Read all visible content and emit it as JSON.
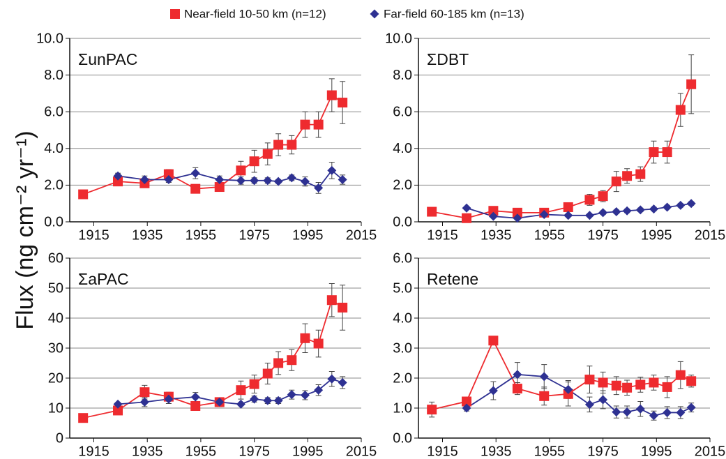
{
  "ylabel": "Flux (ng cm⁻² yr⁻¹)",
  "chart_data": [
    {
      "type": "line",
      "title": "ΣunPAC",
      "xlim": [
        1906,
        2015
      ],
      "xticks": [
        1915,
        1935,
        1955,
        1975,
        1995,
        2015
      ],
      "ylim": [
        0,
        10
      ],
      "yticks": [
        {
          "value": 0,
          "label": "0.0"
        },
        {
          "value": 2,
          "label": "2.0"
        },
        {
          "value": 4,
          "label": "4.0"
        },
        {
          "value": 6,
          "label": "6.0"
        },
        {
          "value": 8,
          "label": "8.0"
        },
        {
          "value": 10,
          "label": "10.0"
        }
      ],
      "grid": true,
      "series": [
        {
          "name": "Near-field 10-50 km (n=12)",
          "color": "#ee2b2f",
          "marker": "square",
          "x": [
            1911,
            1924,
            1934,
            1943,
            1953,
            1962,
            1970,
            1975,
            1980,
            1984,
            1989,
            1994,
            1999,
            2004,
            2008
          ],
          "values": [
            1.5,
            2.2,
            2.1,
            2.6,
            1.8,
            1.9,
            2.8,
            3.3,
            3.7,
            4.2,
            4.2,
            5.3,
            5.3,
            6.9,
            6.5
          ],
          "errors": [
            null,
            0.15,
            0.2,
            0.25,
            0.1,
            0.15,
            0.5,
            0.6,
            0.6,
            0.6,
            0.5,
            0.7,
            0.7,
            0.9,
            1.15
          ]
        },
        {
          "name": "Far-field 60-185 km (n=13)",
          "color": "#2e3192",
          "marker": "diamond",
          "x": [
            1924,
            1934,
            1943,
            1953,
            1962,
            1970,
            1975,
            1980,
            1984,
            1989,
            1994,
            1999,
            2004,
            2008
          ],
          "values": [
            2.5,
            2.3,
            2.3,
            2.65,
            2.3,
            2.25,
            2.25,
            2.25,
            2.2,
            2.4,
            2.2,
            1.85,
            2.8,
            2.3
          ],
          "errors": [
            0.15,
            0.2,
            0.15,
            0.3,
            0.2,
            0.2,
            0.15,
            0.15,
            0.1,
            0.15,
            0.25,
            0.3,
            0.45,
            0.25
          ]
        }
      ]
    },
    {
      "type": "line",
      "title": "ΣDBT",
      "xlim": [
        1906,
        2015
      ],
      "xticks": [
        1915,
        1935,
        1955,
        1975,
        1995,
        2015
      ],
      "ylim": [
        0,
        10
      ],
      "yticks": [
        {
          "value": 0,
          "label": "0.0"
        },
        {
          "value": 2,
          "label": "2.0"
        },
        {
          "value": 4,
          "label": "4.0"
        },
        {
          "value": 6,
          "label": "6.0"
        },
        {
          "value": 8,
          "label": "8.0"
        },
        {
          "value": 10,
          "label": "10.0"
        }
      ],
      "grid": true,
      "series": [
        {
          "color": "#ee2b2f",
          "marker": "square",
          "x": [
            1911,
            1924,
            1934,
            1943,
            1953,
            1962,
            1970,
            1975,
            1980,
            1984,
            1989,
            1994,
            1999,
            2004,
            2008
          ],
          "values": [
            0.55,
            0.2,
            0.6,
            0.5,
            0.5,
            0.8,
            1.2,
            1.4,
            2.2,
            2.5,
            2.6,
            3.8,
            3.8,
            6.1,
            7.5
          ],
          "errors": [
            null,
            0.1,
            0.1,
            0.1,
            0.1,
            0.1,
            0.3,
            0.3,
            0.55,
            0.4,
            0.4,
            0.6,
            0.6,
            0.9,
            1.6
          ]
        },
        {
          "color": "#2e3192",
          "marker": "diamond",
          "x": [
            1924,
            1934,
            1943,
            1953,
            1962,
            1970,
            1975,
            1980,
            1984,
            1989,
            1994,
            1999,
            2004,
            2008
          ],
          "values": [
            0.75,
            0.3,
            0.2,
            0.4,
            0.35,
            0.35,
            0.5,
            0.55,
            0.6,
            0.65,
            0.7,
            0.8,
            0.9,
            1.0
          ],
          "errors": [
            0.05,
            0.05,
            0.05,
            0.05,
            0.05,
            0.05,
            0.1,
            0.1,
            0.1,
            0.1,
            0.1,
            0.1,
            0.1,
            0.1
          ]
        }
      ]
    },
    {
      "type": "line",
      "title": "ΣaPAC",
      "xlim": [
        1906,
        2015
      ],
      "xticks": [
        1915,
        1935,
        1955,
        1975,
        1995,
        2015
      ],
      "ylim": [
        0,
        60
      ],
      "yticks": [
        0,
        10,
        20,
        30,
        40,
        50,
        60
      ],
      "grid": true,
      "series": [
        {
          "color": "#ee2b2f",
          "marker": "square",
          "x": [
            1911,
            1924,
            1934,
            1943,
            1953,
            1962,
            1970,
            1975,
            1980,
            1984,
            1989,
            1994,
            1999,
            2004,
            2008
          ],
          "values": [
            6.7,
            9.2,
            15.3,
            13.8,
            10.7,
            12,
            16,
            18,
            21.5,
            25,
            26,
            33.3,
            31.5,
            46,
            43.5
          ],
          "errors": [
            null,
            0.8,
            2.3,
            1.5,
            1,
            1.5,
            3,
            3,
            3.5,
            3.8,
            3.5,
            4.8,
            4.5,
            5.5,
            7.5
          ]
        },
        {
          "color": "#2e3192",
          "marker": "diamond",
          "x": [
            1924,
            1934,
            1943,
            1953,
            1962,
            1970,
            1975,
            1980,
            1984,
            1989,
            1994,
            1999,
            2004,
            2008
          ],
          "values": [
            11.3,
            12,
            13,
            13.7,
            12,
            11.3,
            13,
            12.5,
            12.5,
            14.5,
            14.3,
            16,
            19.7,
            18.5
          ],
          "errors": [
            0.5,
            1.5,
            1.5,
            1.5,
            1.5,
            0.5,
            1,
            1,
            1,
            1.5,
            1.5,
            1.8,
            2.5,
            2
          ]
        }
      ]
    },
    {
      "type": "line",
      "title": "Retene",
      "xlim": [
        1906,
        2015
      ],
      "xticks": [
        1915,
        1935,
        1955,
        1975,
        1995,
        2015
      ],
      "ylim": [
        0,
        6
      ],
      "yticks": [
        {
          "value": 0,
          "label": "0.0"
        },
        {
          "value": 1,
          "label": "1.0"
        },
        {
          "value": 2,
          "label": "2.0"
        },
        {
          "value": 3,
          "label": "3.0"
        },
        {
          "value": 4,
          "label": "4.0"
        },
        {
          "value": 5,
          "label": "5.0"
        },
        {
          "value": 6,
          "label": "6.0"
        }
      ],
      "grid": true,
      "series": [
        {
          "color": "#ee2b2f",
          "marker": "square",
          "x": [
            1911,
            1924,
            1934,
            1943,
            1953,
            1962,
            1970,
            1975,
            1980,
            1984,
            1989,
            1994,
            1999,
            2004,
            2008
          ],
          "values": [
            0.95,
            1.22,
            3.25,
            1.65,
            1.4,
            1.47,
            1.95,
            1.85,
            1.75,
            1.68,
            1.78,
            1.85,
            1.7,
            2.1,
            1.9
          ],
          "errors": [
            0.25,
            0.1,
            null,
            0.2,
            0.3,
            0.4,
            0.45,
            0.35,
            0.3,
            0.25,
            0.25,
            0.25,
            0.35,
            0.45,
            0.2
          ]
        },
        {
          "color": "#2e3192",
          "marker": "diamond",
          "x": [
            1924,
            1934,
            1943,
            1953,
            1962,
            1970,
            1975,
            1980,
            1984,
            1989,
            1994,
            1999,
            2004,
            2008
          ],
          "values": [
            1.0,
            1.58,
            2.12,
            2.05,
            1.62,
            1.12,
            1.28,
            0.87,
            0.87,
            0.97,
            0.75,
            0.85,
            0.85,
            1.02
          ],
          "errors": [
            0.1,
            0.3,
            0.4,
            0.4,
            0.3,
            0.25,
            0.3,
            0.2,
            0.2,
            0.25,
            0.15,
            0.2,
            0.2,
            0.15
          ]
        }
      ]
    }
  ]
}
